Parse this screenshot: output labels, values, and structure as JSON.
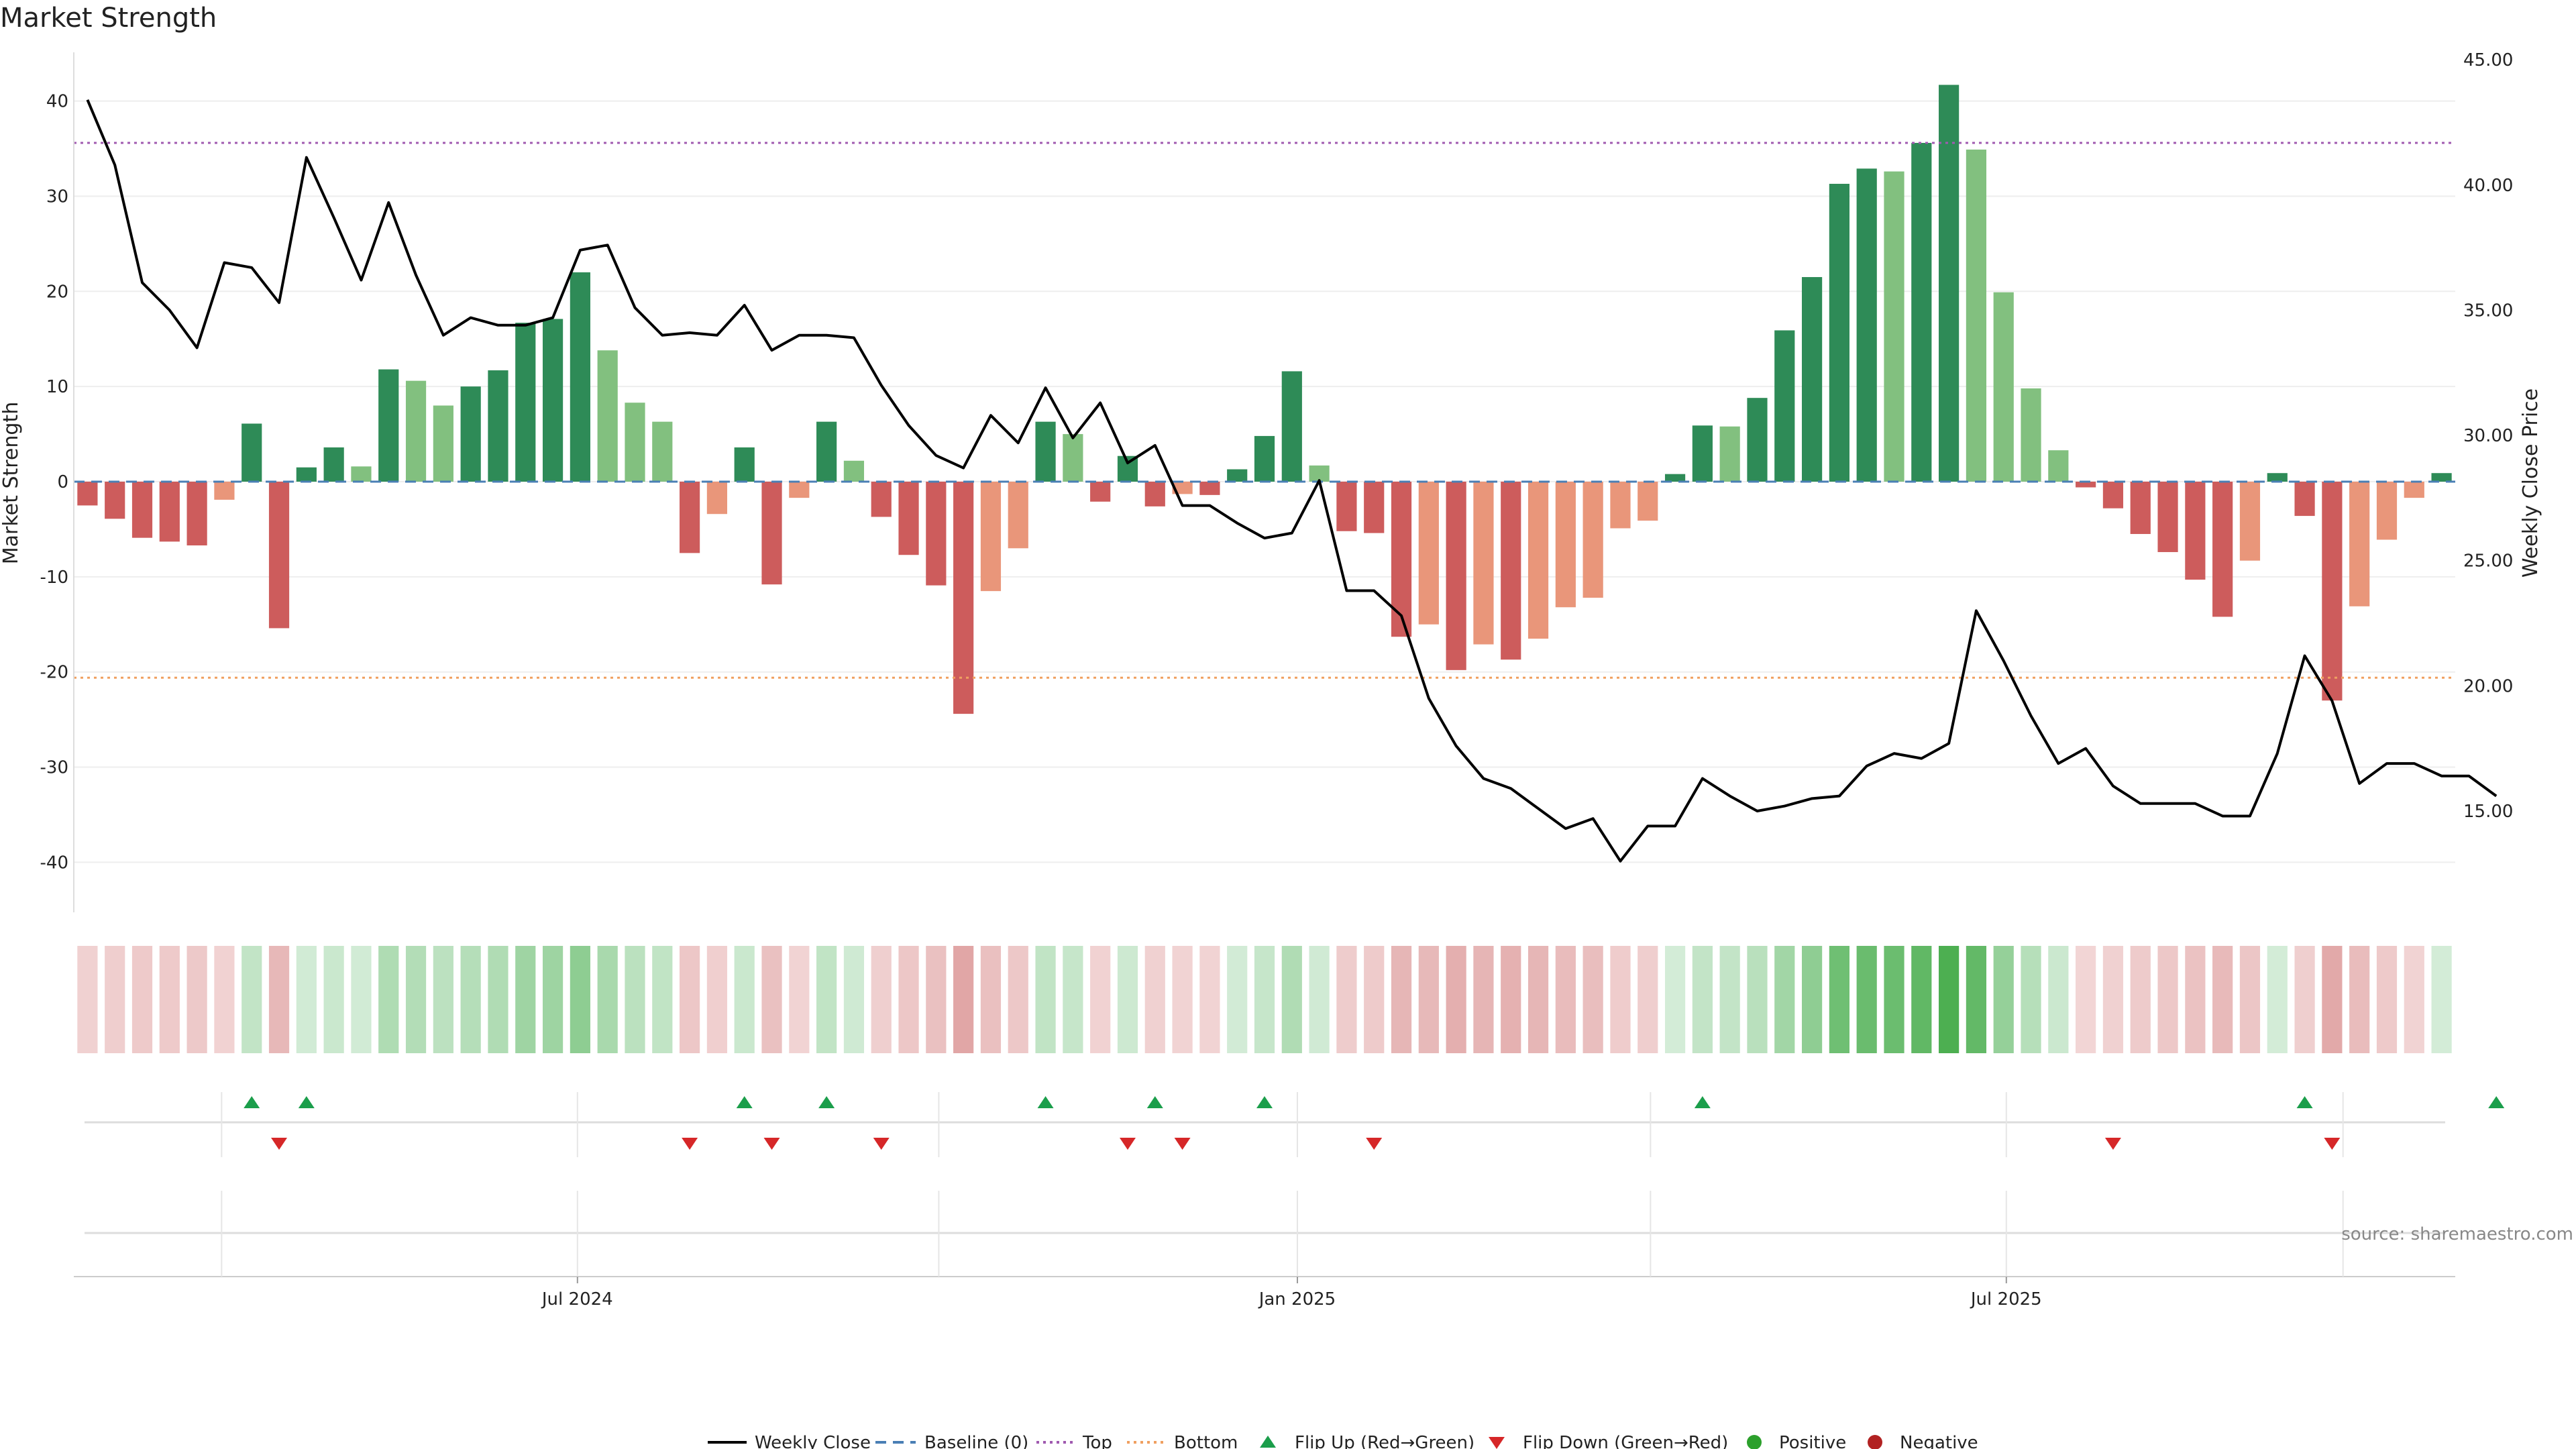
{
  "chart_data": {
    "type": "bar",
    "title": "Market Strength",
    "ylabel": "Market Strength",
    "y2label": "Weekly Close Price",
    "ylim": [
      -45,
      45
    ],
    "y2lim": [
      10.5,
      45.0
    ],
    "yticks": [
      40,
      30,
      20,
      10,
      0,
      -10,
      -20,
      -30,
      -40
    ],
    "y2ticks": [
      "45.00",
      "40.00",
      "35.00",
      "30.00",
      "25.00",
      "20.00",
      "15.00"
    ],
    "y2tick_values": [
      45,
      40,
      35,
      30,
      25,
      20,
      15
    ],
    "top_threshold": 35.6,
    "bottom_threshold": -20.6,
    "x_date_labels": [
      "Jul 2024",
      "Jan 2025",
      "Jul 2025"
    ],
    "x_date_label_weeks": [
      18.4,
      44.7,
      70.6
    ],
    "week_gridlines": [
      5.4,
      18.4,
      31.6,
      44.7,
      57.6,
      70.6,
      82.9
    ],
    "series": [
      {
        "name": "Market Strength",
        "values": [
          -2.5,
          -3.9,
          -5.9,
          -6.3,
          -6.7,
          -1.9,
          6.1,
          -15.4,
          1.5,
          3.6,
          1.6,
          11.8,
          10.6,
          8.0,
          10.0,
          11.7,
          16.7,
          17.1,
          22.0,
          13.8,
          8.3,
          6.3,
          -7.5,
          -3.4,
          3.6,
          -10.8,
          -1.7,
          6.3,
          2.2,
          -3.7,
          -7.7,
          -10.9,
          -24.4,
          -11.5,
          -7.0,
          6.3,
          5.0,
          -2.1,
          2.7,
          -2.6,
          -1.3,
          -1.4,
          1.3,
          4.8,
          11.6,
          1.7,
          -5.2,
          -5.4,
          -16.3,
          -15.0,
          -19.8,
          -17.1,
          -18.7,
          -16.5,
          -13.2,
          -12.2,
          -4.9,
          -4.1,
          0.8,
          5.9,
          5.8,
          8.8,
          15.9,
          21.5,
          31.3,
          32.9,
          32.6,
          35.6,
          41.7,
          34.9,
          19.9,
          9.8,
          3.3,
          -0.6,
          -2.8,
          -5.5,
          -7.4,
          -10.3,
          -14.2,
          -8.3,
          0.9,
          -3.6,
          -23.0,
          -13.1,
          -6.1,
          -1.7,
          0.9
        ]
      },
      {
        "name": "Weekly Close",
        "values": [
          43.4,
          40.8,
          36.1,
          35.0,
          33.5,
          36.9,
          36.7,
          35.3,
          41.1,
          38.7,
          36.2,
          39.3,
          36.4,
          34.0,
          34.7,
          34.4,
          34.4,
          34.7,
          37.4,
          37.6,
          35.1,
          34.0,
          34.1,
          34.0,
          35.2,
          33.4,
          34.0,
          34.0,
          33.9,
          32.0,
          30.4,
          29.2,
          28.7,
          30.8,
          29.7,
          31.9,
          29.9,
          31.3,
          28.9,
          29.6,
          27.2,
          27.2,
          26.5,
          25.9,
          26.1,
          28.2,
          23.8,
          23.8,
          22.8,
          19.5,
          17.6,
          16.3,
          15.9,
          15.1,
          14.3,
          14.7,
          13.0,
          14.4,
          14.4,
          16.3,
          15.6,
          15.0,
          15.2,
          15.5,
          15.6,
          16.8,
          17.3,
          17.1,
          17.7,
          23.0,
          21.0,
          18.8,
          16.9,
          17.5,
          16.0,
          15.3,
          15.3,
          15.3,
          14.8,
          14.8,
          17.3,
          21.2,
          19.4,
          16.1,
          16.9,
          16.9,
          16.4,
          16.4,
          15.6
        ]
      }
    ],
    "flip_up_weeks": [
      6,
      8,
      24,
      27,
      35,
      39,
      43,
      59,
      81,
      88
    ],
    "flip_down_weeks": [
      7,
      22,
      25,
      29,
      38,
      40,
      47,
      74,
      82
    ],
    "legend": [
      "Weekly Close",
      "Baseline (0)",
      "Top",
      "Bottom",
      "Flip Up (Red→Green)",
      "Flip Down (Green→Red)",
      "Positive",
      "Negative"
    ],
    "legend_position": "bottom",
    "source": "source: sharemaestro.com"
  },
  "colors": {
    "strong_green": "#2e8b57",
    "light_green": "#82c07f",
    "strong_red": "#cd5c5c",
    "light_red": "#e9967a",
    "close_line": "#000000",
    "baseline": "#4a7fb5",
    "top_line": "#a05ab0",
    "bottom_line": "#f0a060",
    "flip_up": "#1b9e4b",
    "flip_down": "#d62728",
    "positive_dot": "#2ca02c",
    "negative_dot": "#b22222"
  }
}
